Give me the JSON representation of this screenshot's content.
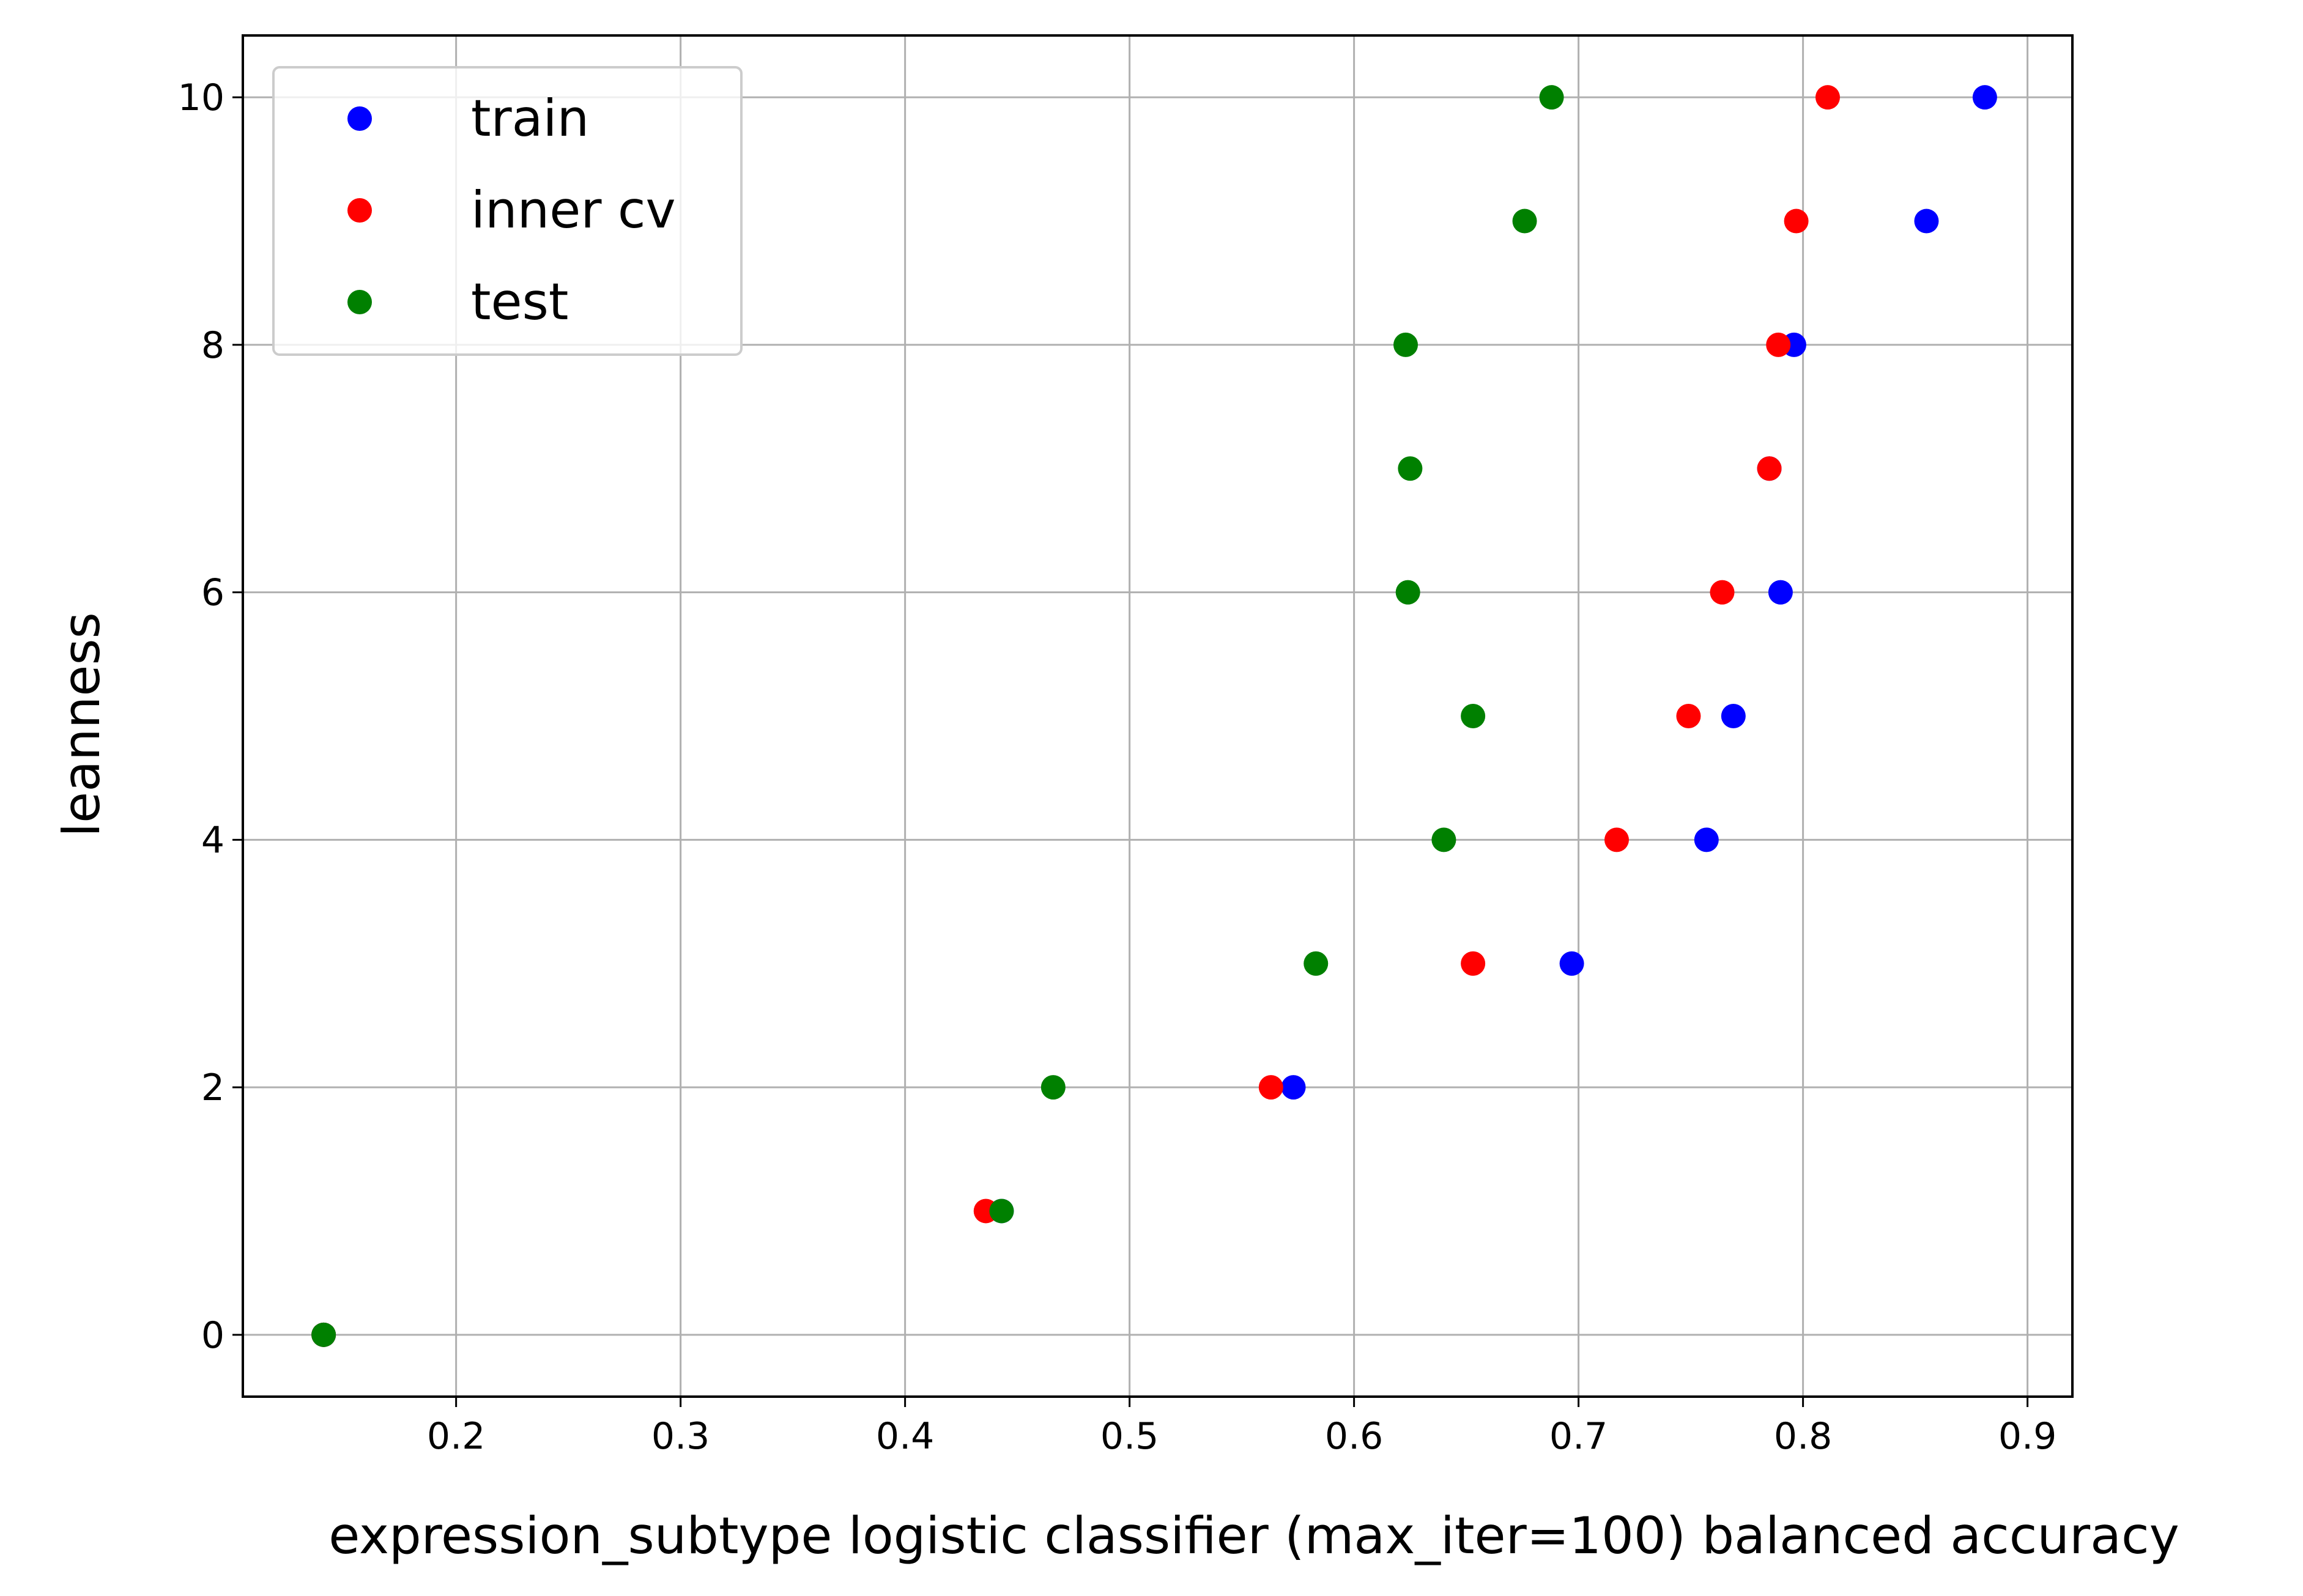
{
  "chart_data": {
    "type": "scatter",
    "title": "",
    "xlabel": "expression_subtype logistic classifier (max_iter=100) balanced accuracy",
    "ylabel": "leanness",
    "xlim": [
      0.105,
      0.92
    ],
    "ylim": [
      -0.5,
      10.5
    ],
    "xticks": [
      0.2,
      0.3,
      0.4,
      0.5,
      0.6,
      0.7,
      0.8,
      0.9
    ],
    "xtick_labels": [
      "0.2",
      "0.3",
      "0.4",
      "0.5",
      "0.6",
      "0.7",
      "0.8",
      "0.9"
    ],
    "yticks": [
      0,
      2,
      4,
      6,
      8,
      10
    ],
    "ytick_labels": [
      "0",
      "2",
      "4",
      "6",
      "8",
      "10"
    ],
    "grid": true,
    "legend_position": "top-left",
    "series": [
      {
        "name": "train",
        "color": "#0000ff",
        "points": [
          [
            0.141,
            0
          ],
          [
            0.443,
            1
          ],
          [
            0.573,
            2
          ],
          [
            0.697,
            3
          ],
          [
            0.757,
            4
          ],
          [
            0.769,
            5
          ],
          [
            0.79,
            6
          ],
          [
            0.785,
            7
          ],
          [
            0.796,
            8
          ],
          [
            0.855,
            9
          ],
          [
            0.881,
            10
          ]
        ]
      },
      {
        "name": "inner cv",
        "color": "#ff0000",
        "points": [
          [
            0.141,
            0
          ],
          [
            0.436,
            1
          ],
          [
            0.563,
            2
          ],
          [
            0.653,
            3
          ],
          [
            0.717,
            4
          ],
          [
            0.749,
            5
          ],
          [
            0.764,
            6
          ],
          [
            0.785,
            7
          ],
          [
            0.789,
            8
          ],
          [
            0.797,
            9
          ],
          [
            0.811,
            10
          ]
        ]
      },
      {
        "name": "test",
        "color": "#008000",
        "points": [
          [
            0.141,
            0
          ],
          [
            0.443,
            1
          ],
          [
            0.466,
            2
          ],
          [
            0.583,
            3
          ],
          [
            0.64,
            4
          ],
          [
            0.653,
            5
          ],
          [
            0.624,
            6
          ],
          [
            0.625,
            7
          ],
          [
            0.623,
            8
          ],
          [
            0.676,
            9
          ],
          [
            0.688,
            10
          ]
        ]
      }
    ]
  }
}
